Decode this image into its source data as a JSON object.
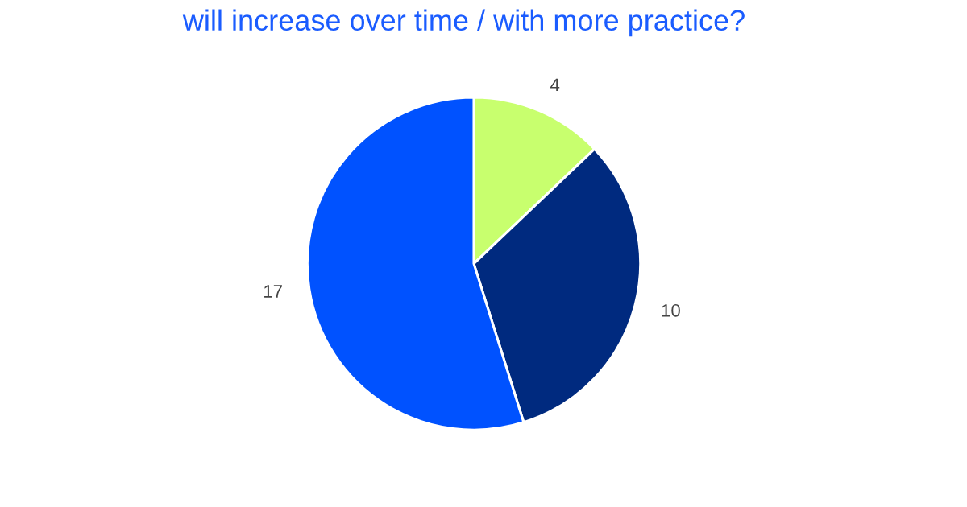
{
  "chart_data": {
    "type": "pie",
    "title": "will increase over time / with more practice?",
    "categories": [
      null,
      null,
      null
    ],
    "values": [
      4,
      10,
      17
    ],
    "colors": [
      "#c8ff6e",
      "#002a7f",
      "#0052ff"
    ],
    "data_labels": true
  }
}
